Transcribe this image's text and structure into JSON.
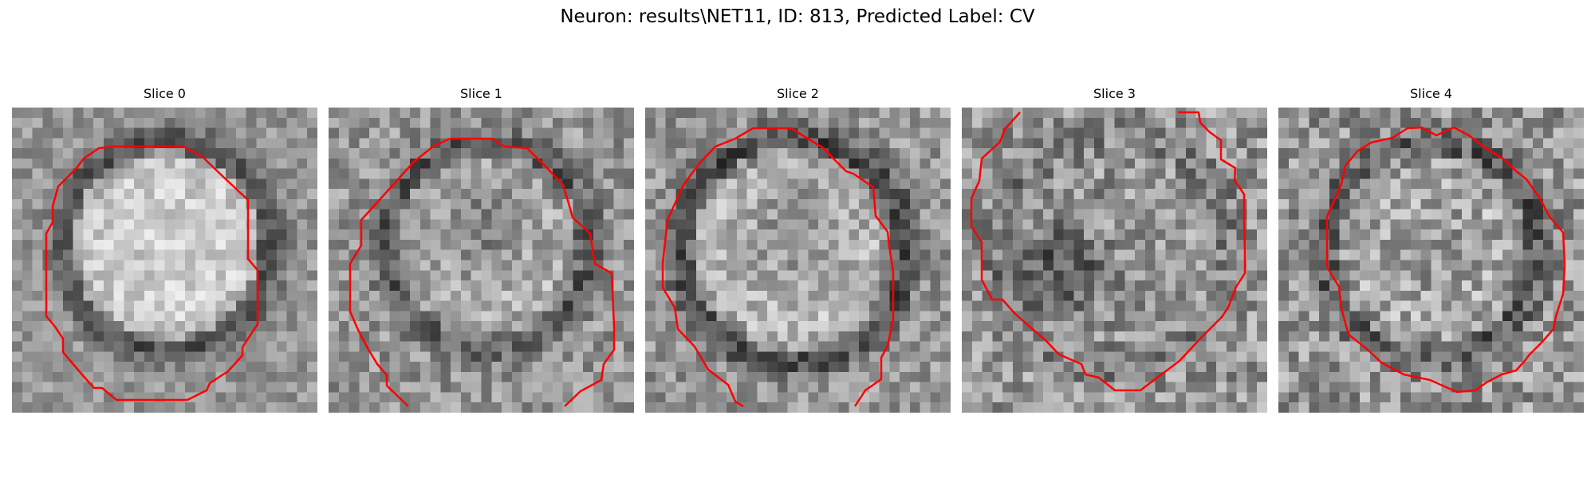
{
  "figure": {
    "title": "Neuron: results\\NET11, ID: 813, Predicted Label: CV",
    "contour_color": "#ff0000"
  },
  "panels": [
    {
      "title": "Slice 0"
    },
    {
      "title": "Slice 1"
    },
    {
      "title": "Slice 2"
    },
    {
      "title": "Slice 3"
    },
    {
      "title": "Slice 4"
    }
  ]
}
